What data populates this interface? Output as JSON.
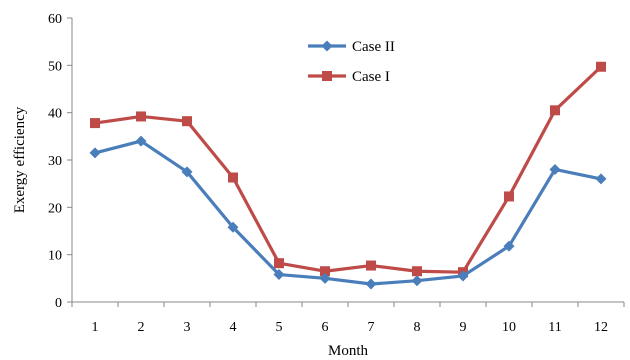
{
  "chart_data": {
    "type": "line",
    "title": "",
    "xlabel": "Month",
    "ylabel": "Exergy  efficiency",
    "categories": [
      "1",
      "2",
      "3",
      "4",
      "5",
      "6",
      "7",
      "8",
      "9",
      "10",
      "11",
      "12"
    ],
    "ylim": [
      0,
      60
    ],
    "yticks": [
      0,
      10,
      20,
      30,
      40,
      50,
      60
    ],
    "grid": false,
    "legend_position": "top-center",
    "series": [
      {
        "name": "Case II",
        "color": "#4a7ebb",
        "marker": "diamond",
        "values": [
          31.5,
          34.0,
          27.5,
          15.8,
          5.8,
          5.0,
          3.8,
          4.5,
          5.5,
          11.8,
          28.0,
          26.0
        ]
      },
      {
        "name": "Case I",
        "color": "#be4b48",
        "marker": "square",
        "values": [
          37.8,
          39.2,
          38.2,
          26.3,
          8.2,
          6.5,
          7.7,
          6.5,
          6.3,
          22.3,
          40.5,
          49.7
        ]
      }
    ]
  }
}
